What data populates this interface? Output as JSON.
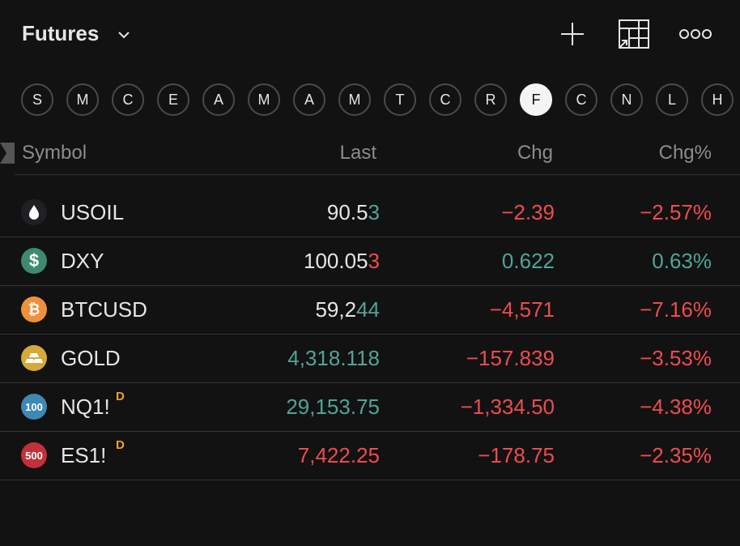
{
  "header": {
    "title": "Futures"
  },
  "tabs": {
    "items": [
      "S",
      "M",
      "C",
      "E",
      "A",
      "M",
      "A",
      "M",
      "T",
      "C",
      "R",
      "F",
      "C",
      "N",
      "L",
      "H"
    ],
    "selected": 11
  },
  "colors": {
    "up": "#4fa596",
    "down": "#ef4b4f",
    "default": "#e6e6e6"
  },
  "table": {
    "columns": [
      "Symbol",
      "Last",
      "Chg",
      "Chg%"
    ],
    "rows": [
      {
        "icon": "drop",
        "icon_color": "#1e2024",
        "symbol": "USOIL",
        "last": "90.53",
        "last_color": "default",
        "highlight_digits": 1,
        "highlight_color": "up",
        "chg": "−2.39",
        "chg_pct": "−2.57%",
        "direction": "down"
      },
      {
        "icon": "text",
        "icon_label": "$",
        "icon_color": "#3d8a6e",
        "symbol": "DXY",
        "last": "100.053",
        "last_color": "default",
        "highlight_digits": 1,
        "highlight_color": "down",
        "chg": "0.622",
        "chg_pct": "0.63%",
        "direction": "up"
      },
      {
        "icon": "bitcoin",
        "icon_color": "#f0913a",
        "symbol": "BTCUSD",
        "last": "59,244",
        "last_color": "default",
        "highlight_digits": 2,
        "highlight_color": "up",
        "chg": "−4,571",
        "chg_pct": "−7.16%",
        "direction": "down"
      },
      {
        "icon": "gold",
        "icon_color": "#d7a93a",
        "symbol": "GOLD",
        "last": "4,318.118",
        "last_color": "up",
        "chg": "−157.839",
        "chg_pct": "−3.53%",
        "direction": "down"
      },
      {
        "icon": "text",
        "icon_label": "100",
        "icon_color": "#3f88b4",
        "symbol": "NQ1!",
        "badge": "D",
        "last": "29,153.75",
        "last_color": "up",
        "chg": "−1,334.50",
        "chg_pct": "−4.38%",
        "direction": "down"
      },
      {
        "icon": "text",
        "icon_label": "500",
        "icon_color": "#c2313a",
        "symbol": "ES1!",
        "badge": "D",
        "last": "7,422.25",
        "last_color": "down",
        "chg": "−178.75",
        "chg_pct": "−2.35%",
        "direction": "down"
      }
    ]
  }
}
